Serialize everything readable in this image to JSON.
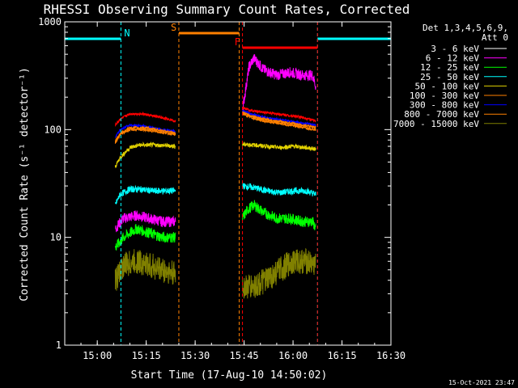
{
  "chart_data": {
    "type": "line",
    "title": "RHESSI Observing Summary Count Rates, Corrected",
    "xlabel": "Start Time (17-Aug-10 14:50:02)",
    "ylabel": "Corrected Count Rate (s⁻¹ detector⁻¹)",
    "y_scale": "log",
    "ylim": [
      1,
      1000
    ],
    "xlim": [
      "14:50:02",
      "16:30:00"
    ],
    "x_tick_labels": [
      "15:00",
      "15:15",
      "15:30",
      "15:45",
      "16:00",
      "16:15",
      "16:30"
    ],
    "y_tick_labels": [
      "1",
      "10",
      "100",
      "1000"
    ],
    "legend_header": [
      "Det 1,3,4,5,6,9,",
      "Att 0"
    ],
    "legend_position": "right",
    "timestamp": "15-Oct-2021 23:47",
    "markers": [
      {
        "label": "N",
        "name": "night",
        "color": "#00ffff",
        "intervals": [
          [
            "14:50:02",
            "15:07:15"
          ],
          [
            "16:07:30",
            "16:30:00"
          ]
        ]
      },
      {
        "label": "S",
        "name": "saa",
        "color": "#ff8000",
        "intervals": [
          [
            "15:25:00",
            "15:43:30"
          ]
        ]
      },
      {
        "label": "F",
        "name": "flare",
        "color": "#ff0000",
        "intervals": [
          [
            "15:44:30",
            "16:07:30"
          ]
        ]
      }
    ],
    "series": [
      {
        "name": "3 - 6 keV",
        "color": "#000000",
        "noise": 0.18,
        "seg1": [
          [
            "15:05:30",
            2.5
          ],
          [
            "15:07",
            4
          ],
          [
            "15:10",
            5
          ],
          [
            "15:13",
            6
          ],
          [
            "15:16",
            5
          ],
          [
            "15:19",
            4.5
          ],
          [
            "15:22",
            4
          ],
          [
            "15:24",
            3
          ]
        ],
        "seg2": [
          [
            "15:44:30",
            150
          ],
          [
            "15:46:30",
            380
          ],
          [
            "15:48",
            450
          ],
          [
            "15:51",
            350
          ],
          [
            "15:55",
            320
          ],
          [
            "15:59",
            360
          ],
          [
            "16:03",
            350
          ],
          [
            "16:06",
            340
          ],
          [
            "16:07",
            250
          ]
        ]
      },
      {
        "name": "6 - 12 keV",
        "color": "#ff00ff",
        "noise": 0.05,
        "seg1": [
          [
            "15:05:30",
            12
          ],
          [
            "15:08",
            15
          ],
          [
            "15:12",
            16
          ],
          [
            "15:16",
            15
          ],
          [
            "15:20",
            14
          ],
          [
            "15:24",
            14
          ]
        ],
        "seg2": [
          [
            "15:44:30",
            150
          ],
          [
            "15:46:30",
            380
          ],
          [
            "15:48",
            460
          ],
          [
            "15:51",
            360
          ],
          [
            "15:55",
            320
          ],
          [
            "15:59",
            340
          ],
          [
            "16:03",
            320
          ],
          [
            "16:06",
            320
          ],
          [
            "16:07",
            250
          ]
        ]
      },
      {
        "name": "12 - 25 keV",
        "color": "#00ff00",
        "noise": 0.05,
        "seg1": [
          [
            "15:05:30",
            8
          ],
          [
            "15:08",
            10
          ],
          [
            "15:12",
            12
          ],
          [
            "15:16",
            11
          ],
          [
            "15:20",
            10
          ],
          [
            "15:24",
            10
          ]
        ],
        "seg2": [
          [
            "15:44:30",
            15
          ],
          [
            "15:46",
            18
          ],
          [
            "15:48",
            20
          ],
          [
            "15:51",
            17
          ],
          [
            "15:55",
            15
          ],
          [
            "15:59",
            15
          ],
          [
            "16:03",
            14
          ],
          [
            "16:06",
            14
          ],
          [
            "16:07",
            12
          ]
        ]
      },
      {
        "name": "25 - 50 keV",
        "color": "#00ffff",
        "noise": 0.03,
        "seg1": [
          [
            "15:05:30",
            20
          ],
          [
            "15:07",
            25
          ],
          [
            "15:10",
            28
          ],
          [
            "15:13",
            28
          ],
          [
            "15:17",
            27
          ],
          [
            "15:21",
            27
          ],
          [
            "15:24",
            27
          ]
        ],
        "seg2": [
          [
            "15:44:30",
            30
          ],
          [
            "15:48",
            29
          ],
          [
            "15:52",
            27
          ],
          [
            "15:56",
            26
          ],
          [
            "16:00",
            27
          ],
          [
            "16:04",
            27
          ],
          [
            "16:07",
            25
          ]
        ]
      },
      {
        "name": "50 - 100 keV",
        "color": "#e0d000",
        "noise": 0.02,
        "seg1": [
          [
            "15:05:30",
            45
          ],
          [
            "15:07",
            55
          ],
          [
            "15:10",
            68
          ],
          [
            "15:13",
            72
          ],
          [
            "15:17",
            72
          ],
          [
            "15:21",
            71
          ],
          [
            "15:24",
            70
          ]
        ],
        "seg2": [
          [
            "15:44:30",
            73
          ],
          [
            "15:48",
            72
          ],
          [
            "15:52",
            70
          ],
          [
            "15:56",
            68
          ],
          [
            "16:00",
            70
          ],
          [
            "16:04",
            68
          ],
          [
            "16:07",
            66
          ]
        ]
      },
      {
        "name": "100 - 300 keV",
        "color": "#ff8000",
        "noise": 0.012,
        "seg1": [
          [
            "15:05:30",
            75
          ],
          [
            "15:07",
            90
          ],
          [
            "15:10",
            100
          ],
          [
            "15:14",
            100
          ],
          [
            "15:18",
            96
          ],
          [
            "15:22",
            92
          ],
          [
            "15:24",
            90
          ]
        ],
        "seg2": [
          [
            "15:44:30",
            140
          ],
          [
            "15:47",
            130
          ],
          [
            "15:51",
            120
          ],
          [
            "15:55",
            115
          ],
          [
            "15:59",
            110
          ],
          [
            "16:03",
            105
          ],
          [
            "16:07",
            100
          ]
        ]
      },
      {
        "name": "300 - 800 keV",
        "color": "#0000ff",
        "noise": 0.012,
        "seg1": [
          [
            "15:05:30",
            85
          ],
          [
            "15:07",
            100
          ],
          [
            "15:10",
            110
          ],
          [
            "15:14",
            108
          ],
          [
            "15:18",
            102
          ],
          [
            "15:22",
            98
          ],
          [
            "15:24",
            96
          ]
        ],
        "seg2": [
          [
            "15:44:30",
            150
          ],
          [
            "15:47",
            140
          ],
          [
            "15:51",
            130
          ],
          [
            "15:55",
            125
          ],
          [
            "15:59",
            120
          ],
          [
            "16:03",
            115
          ],
          [
            "16:07",
            110
          ]
        ]
      },
      {
        "name": "800 - 7000 keV",
        "color": "#ff8000",
        "noise": 0.012,
        "seg1": [
          [
            "15:05:30",
            78
          ],
          [
            "15:07",
            92
          ],
          [
            "15:10",
            104
          ],
          [
            "15:14",
            104
          ],
          [
            "15:18",
            100
          ],
          [
            "15:22",
            95
          ],
          [
            "15:24",
            92
          ]
        ],
        "seg2": [
          [
            "15:44:30",
            145
          ],
          [
            "15:47",
            135
          ],
          [
            "15:51",
            125
          ],
          [
            "15:55",
            120
          ],
          [
            "15:59",
            115
          ],
          [
            "16:03",
            110
          ],
          [
            "16:07",
            105
          ]
        ]
      },
      {
        "name": "7000 - 15000 keV",
        "color": "#808000",
        "noise": 0.12,
        "seg1": [
          [
            "15:05:30",
            4
          ],
          [
            "15:08",
            5.5
          ],
          [
            "15:12",
            6
          ],
          [
            "15:16",
            5.5
          ],
          [
            "15:20",
            5
          ],
          [
            "15:24",
            4.5
          ]
        ],
        "seg2": [
          [
            "15:44:30",
            3.5
          ],
          [
            "15:48",
            3.5
          ],
          [
            "15:52",
            4
          ],
          [
            "15:56",
            5
          ],
          [
            "16:00",
            6
          ],
          [
            "16:04",
            6
          ],
          [
            "16:07",
            5.5
          ]
        ]
      },
      {
        "name": "",
        "color": "#ff0000",
        "noise": 0.012,
        "seg1": [
          [
            "15:05:30",
            110
          ],
          [
            "15:07",
            125
          ],
          [
            "15:10",
            140
          ],
          [
            "15:14",
            140
          ],
          [
            "15:18",
            132
          ],
          [
            "15:22",
            125
          ],
          [
            "15:24",
            120
          ]
        ],
        "seg2": [
          [
            "15:44:30",
            160
          ],
          [
            "15:47",
            150
          ],
          [
            "15:51",
            145
          ],
          [
            "15:55",
            140
          ],
          [
            "15:59",
            135
          ],
          [
            "16:03",
            130
          ],
          [
            "16:07",
            120
          ]
        ]
      }
    ]
  }
}
